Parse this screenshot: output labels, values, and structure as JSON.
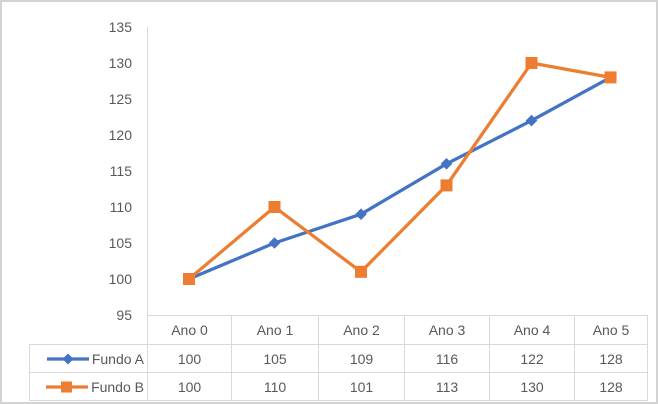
{
  "window": {
    "background": "#ffffff",
    "frame_border_color": "#d3d3d3"
  },
  "chart_data": {
    "type": "line",
    "title": "",
    "xlabel": "",
    "ylabel": "",
    "categories": [
      "Ano 0",
      "Ano 1",
      "Ano 2",
      "Ano 3",
      "Ano 4",
      "Ano 5"
    ],
    "series": [
      {
        "name": "Fundo A",
        "values": [
          100,
          105,
          109,
          116,
          122,
          128
        ],
        "color": "#4472C4",
        "marker": "diamond"
      },
      {
        "name": "Fundo B",
        "values": [
          100,
          110,
          101,
          113,
          130,
          128
        ],
        "color": "#ED7D31",
        "marker": "square"
      }
    ],
    "y_axis": {
      "min": 95,
      "max": 135,
      "step": 5,
      "ticks": [
        135,
        130,
        125,
        120,
        115,
        110,
        105,
        100,
        95
      ],
      "tick_label_color": "#595959",
      "axis_line_color": "#d9d9d9"
    },
    "grid": false,
    "legend_position": "data-table-left"
  },
  "data_table": {
    "column_headers": [
      "Ano 0",
      "Ano 1",
      "Ano 2",
      "Ano 3",
      "Ano 4",
      "Ano 5"
    ],
    "rows": [
      {
        "legend_label": "Fundo A",
        "values": [
          "100",
          "105",
          "109",
          "116",
          "122",
          "128"
        ]
      },
      {
        "legend_label": "Fundo B",
        "values": [
          "100",
          "110",
          "101",
          "113",
          "130",
          "128"
        ]
      }
    ],
    "border_color": "#d9d9d9",
    "text_color": "#595959"
  }
}
